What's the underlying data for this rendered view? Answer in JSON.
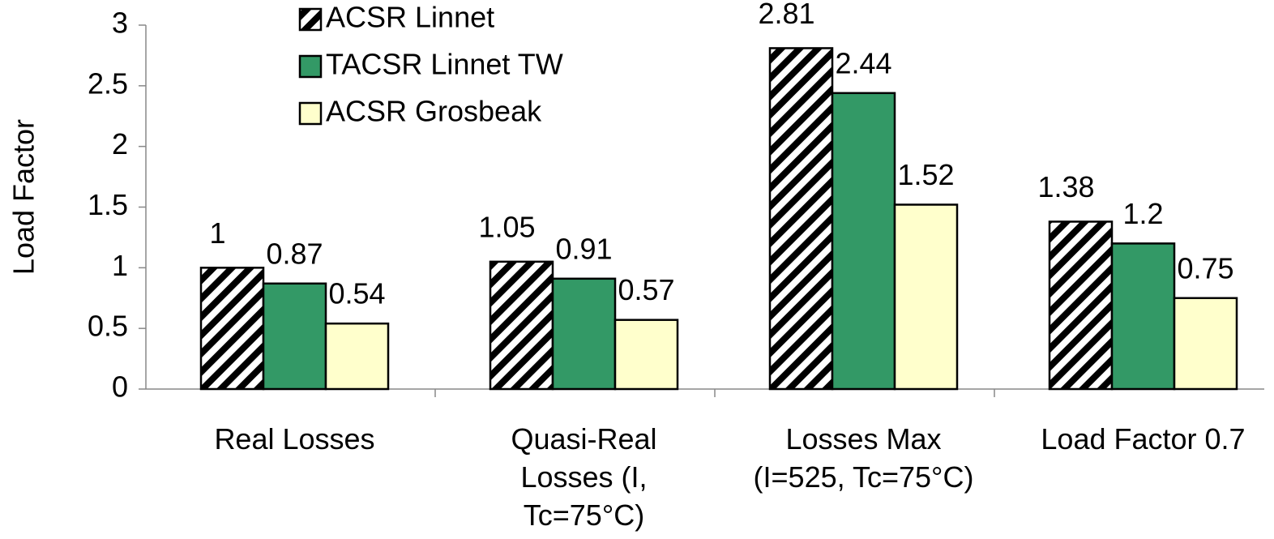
{
  "chart_data": {
    "type": "bar",
    "categories": [
      "Real Losses",
      "Quasi-Real\nLosses (I,\nTc=75°C)",
      "Losses Max\n(I=525, Tc=75°C)",
      "Load Factor 0.7"
    ],
    "y_label": "Load Factor",
    "series": [
      {
        "name": "ACSR Linnet",
        "color": "#ffffff",
        "pattern": "hatch",
        "values": [
          1,
          1.05,
          2.81,
          1.38
        ]
      },
      {
        "name": "TACSR Linnet TW",
        "color": "#339966",
        "values": [
          0.87,
          0.91,
          2.44,
          1.2
        ]
      },
      {
        "name": "ACSR Grosbeak",
        "color": "#ffffcc",
        "values": [
          0.54,
          0.57,
          1.52,
          0.75
        ]
      }
    ],
    "ylim": [
      0,
      3
    ],
    "yticks": [
      0,
      0.5,
      1,
      1.5,
      2,
      2.5,
      3
    ],
    "legend": "top"
  }
}
